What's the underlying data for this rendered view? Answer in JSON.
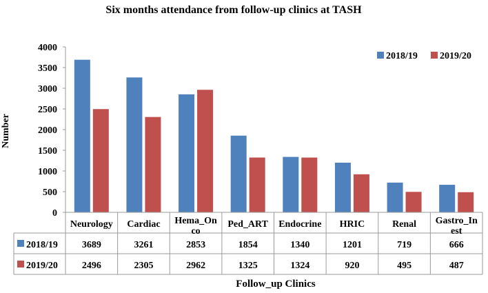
{
  "chart_data": {
    "type": "bar",
    "title": "Six months attendance from follow-up clinics at TASH",
    "xlabel": "Follow_up Clinics",
    "ylabel": "Number",
    "ylim": [
      0,
      4000
    ],
    "yticks": [
      0,
      500,
      1000,
      1500,
      2000,
      2500,
      3000,
      3500,
      4000
    ],
    "categories": [
      "Neurology",
      "Cardiac",
      "Hema_Onco",
      "Ped_ART",
      "Endocrine",
      "HRIC",
      "Renal",
      "Gastro_Inest"
    ],
    "category_display": [
      [
        "Neurology"
      ],
      [
        "Cardiac"
      ],
      [
        "Hema_On",
        "co"
      ],
      [
        "Ped_ART"
      ],
      [
        "Endocrine"
      ],
      [
        "HRIC"
      ],
      [
        "Renal"
      ],
      [
        "Gastro_In",
        "est"
      ]
    ],
    "series": [
      {
        "name": "2018/19",
        "color": "#4F81BD",
        "values": [
          3689,
          3261,
          2853,
          1854,
          1340,
          1201,
          719,
          666
        ]
      },
      {
        "name": "2019/20",
        "color": "#C0504D",
        "values": [
          2496,
          2305,
          2962,
          1325,
          1324,
          920,
          495,
          487
        ]
      }
    ],
    "legend_position": "top-right",
    "grid": false,
    "data_table": true
  }
}
